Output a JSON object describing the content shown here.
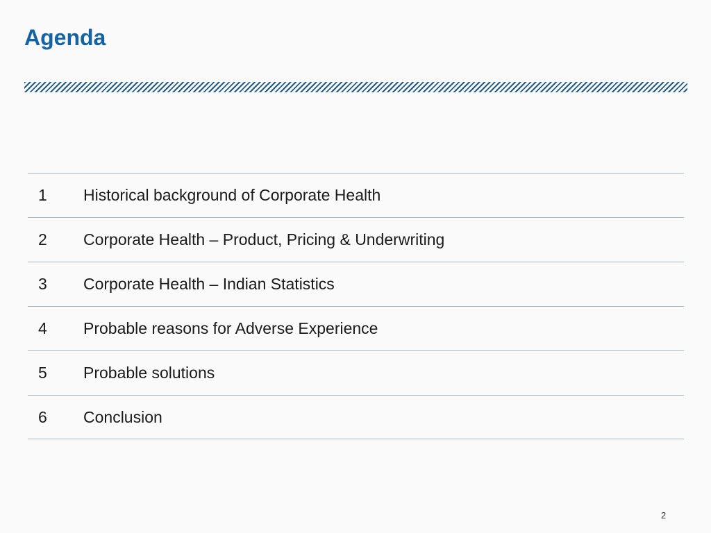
{
  "slide": {
    "title": "Agenda",
    "page_number": "2",
    "colors": {
      "title_blue": "#1464a4",
      "hatch_blue": "#1f5b86",
      "row_separator": "#a3b4bf",
      "body_text": "#1a1a1a",
      "background": "#fafafa"
    },
    "agenda_items": [
      {
        "number": "1",
        "label": "Historical background of Corporate Health"
      },
      {
        "number": "2",
        "label": "Corporate Health – Product, Pricing & Underwriting"
      },
      {
        "number": "3",
        "label": "Corporate Health – Indian Statistics"
      },
      {
        "number": "4",
        "label": "Probable reasons for Adverse Experience"
      },
      {
        "number": "5",
        "label": "Probable solutions"
      },
      {
        "number": "6",
        "label": "Conclusion"
      }
    ]
  }
}
